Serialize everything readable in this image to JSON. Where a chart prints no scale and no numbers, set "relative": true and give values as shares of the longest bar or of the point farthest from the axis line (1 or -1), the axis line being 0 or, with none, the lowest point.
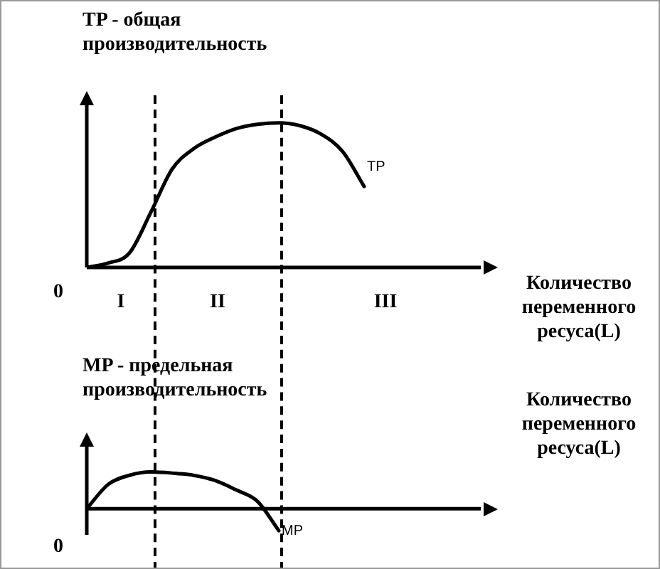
{
  "chart_data": [
    {
      "type": "line",
      "title": "TP - общая производительность",
      "xlabel": "Количество переменного ресуса(L)",
      "relative": true,
      "categories": [
        null,
        null,
        null,
        null,
        null,
        null,
        null,
        null,
        null,
        null,
        null,
        null,
        null,
        null,
        null,
        null,
        null,
        null,
        null,
        null
      ],
      "series": [
        {
          "name": "TP",
          "color": "#000000",
          "values": [
            0,
            0.03,
            0.1,
            0.38,
            0.68,
            0.82,
            0.9,
            0.96,
            0.99,
            1,
            0.98,
            0.92,
            0.8,
            0.56,
            null,
            null,
            null,
            null,
            null,
            null
          ]
        }
      ],
      "annotations": [
        "0",
        "I",
        "II",
        "III"
      ]
    },
    {
      "type": "line",
      "title": "MP - предельная производительность",
      "xlabel": "Количество переменного ресуса(L)",
      "relative": true,
      "categories": [
        null,
        null,
        null,
        null,
        null,
        null,
        null,
        null,
        null,
        null,
        null,
        null,
        null,
        null,
        null,
        null,
        null,
        null,
        null,
        null
      ],
      "series": [
        {
          "name": "MP",
          "color": "#000000",
          "values": [
            0,
            0.66,
            0.91,
            1,
            0.97,
            0.91,
            0.77,
            0.51,
            0.2,
            -0.6,
            null,
            null,
            null,
            null,
            null,
            null,
            null,
            null,
            null,
            null
          ]
        }
      ],
      "annotations": [
        "0"
      ]
    }
  ]
}
